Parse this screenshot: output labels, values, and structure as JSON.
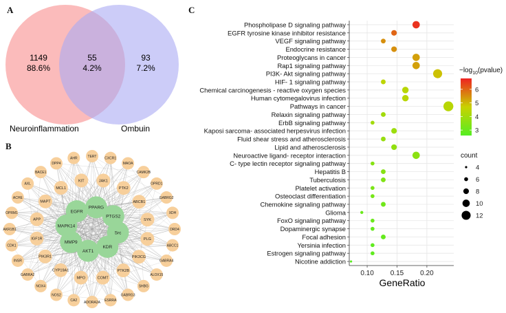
{
  "panels": {
    "a": "A",
    "b": "B",
    "c": "C"
  },
  "venn": {
    "left_set": {
      "name": "Neuroinflammation",
      "count": "1149",
      "percent": "88.6%",
      "color": "#f9a4a4"
    },
    "overlap": {
      "count": "55",
      "percent": "4.2%"
    },
    "right_set": {
      "name": "Ombuin",
      "count": "93",
      "percent": "7.2%",
      "color": "#aaaaf3"
    }
  },
  "network": {
    "hub_color": "#99d699",
    "node_color": "#f7cf9b",
    "hubs": [
      "EGFR",
      "PPARG",
      "PTGS2",
      "Src",
      "KDR",
      "AKT1",
      "MMP9",
      "MAPK14"
    ],
    "outer": [
      "TERT",
      "CXCR1",
      "MAOA",
      "CAMK2B",
      "OPRD1",
      "GABRG2",
      "XDH",
      "DRD4",
      "ABCC1",
      "GABRA4",
      "ALOX15",
      "SHBG",
      "GABRG3",
      "ESRRA",
      "ADORA2A",
      "CA2",
      "NOS2",
      "NOX4",
      "GABRA2",
      "INSR",
      "CDK1",
      "AKR1B1",
      "OPRM1",
      "ACHE",
      "AXL",
      "BACE1",
      "DPP4",
      "AHR"
    ],
    "middle": [
      "JAK1",
      "PTK2",
      "ABCB1",
      "SYK",
      "PLG",
      "PIK3CG",
      "PTK2B",
      "COMT",
      "MPO",
      "CYP19A1",
      "PIK3R1",
      "IGF1R",
      "APP",
      "MAPT",
      "MCL1",
      "KIT"
    ]
  },
  "chart_data": {
    "type": "scatter",
    "xlabel": "GeneRatio",
    "xlim": [
      0.07,
      0.245
    ],
    "xticks": [
      "0.10",
      "0.15",
      "0.20"
    ],
    "pathways": [
      {
        "name": "Phospholipase D signaling pathway",
        "gene_ratio": 0.182,
        "count": 10,
        "neg_log10_p": 6.6
      },
      {
        "name": "EGFR tyrosine kinase inhibitor resistance",
        "gene_ratio": 0.145,
        "count": 8,
        "neg_log10_p": 6.0
      },
      {
        "name": "VEGF signaling pathway",
        "gene_ratio": 0.127,
        "count": 7,
        "neg_log10_p": 5.5
      },
      {
        "name": "Endocrine resistance",
        "gene_ratio": 0.145,
        "count": 8,
        "neg_log10_p": 5.5
      },
      {
        "name": "Proteoglycans in cancer",
        "gene_ratio": 0.182,
        "count": 10,
        "neg_log10_p": 5.3
      },
      {
        "name": "Rap1 signaling pathway",
        "gene_ratio": 0.182,
        "count": 10,
        "neg_log10_p": 5.3
      },
      {
        "name": "PI3K- Akt signaling pathway",
        "gene_ratio": 0.218,
        "count": 12,
        "neg_log10_p": 4.9
      },
      {
        "name": "HIF- 1 signaling pathway",
        "gene_ratio": 0.127,
        "count": 7,
        "neg_log10_p": 4.5
      },
      {
        "name": "Chemical carcinogenesis -  reactive oxygen species",
        "gene_ratio": 0.164,
        "count": 9,
        "neg_log10_p": 4.4
      },
      {
        "name": "Human cytomegalovirus infection",
        "gene_ratio": 0.164,
        "count": 9,
        "neg_log10_p": 4.4
      },
      {
        "name": "Pathways in cancer",
        "gene_ratio": 0.236,
        "count": 13,
        "neg_log10_p": 4.4
      },
      {
        "name": "Relaxin signaling pathway",
        "gene_ratio": 0.127,
        "count": 7,
        "neg_log10_p": 4.0
      },
      {
        "name": "ErbB signaling pathway",
        "gene_ratio": 0.109,
        "count": 6,
        "neg_log10_p": 4.0
      },
      {
        "name": "Kaposi sarcoma- associated herpesvirus infection",
        "gene_ratio": 0.145,
        "count": 8,
        "neg_log10_p": 3.9
      },
      {
        "name": "Fluid shear stress and atherosclerosis",
        "gene_ratio": 0.127,
        "count": 7,
        "neg_log10_p": 3.8
      },
      {
        "name": "Lipid and atherosclerosis",
        "gene_ratio": 0.145,
        "count": 8,
        "neg_log10_p": 3.7
      },
      {
        "name": "Neuroactive ligand- receptor interaction",
        "gene_ratio": 0.182,
        "count": 10,
        "neg_log10_p": 3.6
      },
      {
        "name": "C- type lectin receptor signaling pathway",
        "gene_ratio": 0.109,
        "count": 6,
        "neg_log10_p": 3.5
      },
      {
        "name": "Hepatitis B",
        "gene_ratio": 0.127,
        "count": 7,
        "neg_log10_p": 3.5
      },
      {
        "name": "Tuberculosis",
        "gene_ratio": 0.127,
        "count": 7,
        "neg_log10_p": 3.4
      },
      {
        "name": "Platelet activation",
        "gene_ratio": 0.109,
        "count": 6,
        "neg_log10_p": 3.3
      },
      {
        "name": "Osteoclast differentiation",
        "gene_ratio": 0.109,
        "count": 6,
        "neg_log10_p": 3.2
      },
      {
        "name": "Chemokine signaling pathway",
        "gene_ratio": 0.127,
        "count": 7,
        "neg_log10_p": 3.1
      },
      {
        "name": "Glioma",
        "gene_ratio": 0.091,
        "count": 5,
        "neg_log10_p": 3.0
      },
      {
        "name": "FoxO signaling pathway",
        "gene_ratio": 0.109,
        "count": 6,
        "neg_log10_p": 3.0
      },
      {
        "name": "Dopaminergic synapse",
        "gene_ratio": 0.109,
        "count": 6,
        "neg_log10_p": 2.9
      },
      {
        "name": "Focal adhesion",
        "gene_ratio": 0.127,
        "count": 7,
        "neg_log10_p": 2.9
      },
      {
        "name": "Yersinia infection",
        "gene_ratio": 0.109,
        "count": 6,
        "neg_log10_p": 2.8
      },
      {
        "name": "Estrogen signaling pathway",
        "gene_ratio": 0.109,
        "count": 6,
        "neg_log10_p": 2.8
      },
      {
        "name": "Nicotine addiction",
        "gene_ratio": 0.073,
        "count": 4,
        "neg_log10_p": 2.7
      }
    ],
    "color_legend": {
      "title_prefix": "−log",
      "title_sub": "10",
      "title_suffix": "(pvalue)",
      "ticks": [
        3,
        4,
        5,
        6
      ],
      "range": [
        2.6,
        6.8
      ],
      "low_color": "#55ee22",
      "high_color": "#ee2222"
    },
    "size_legend": {
      "title": "count",
      "ticks": [
        4,
        6,
        8,
        10,
        12
      ]
    },
    "grid": true,
    "background": "#ffffff",
    "grid_color": "#e6e6e6"
  }
}
